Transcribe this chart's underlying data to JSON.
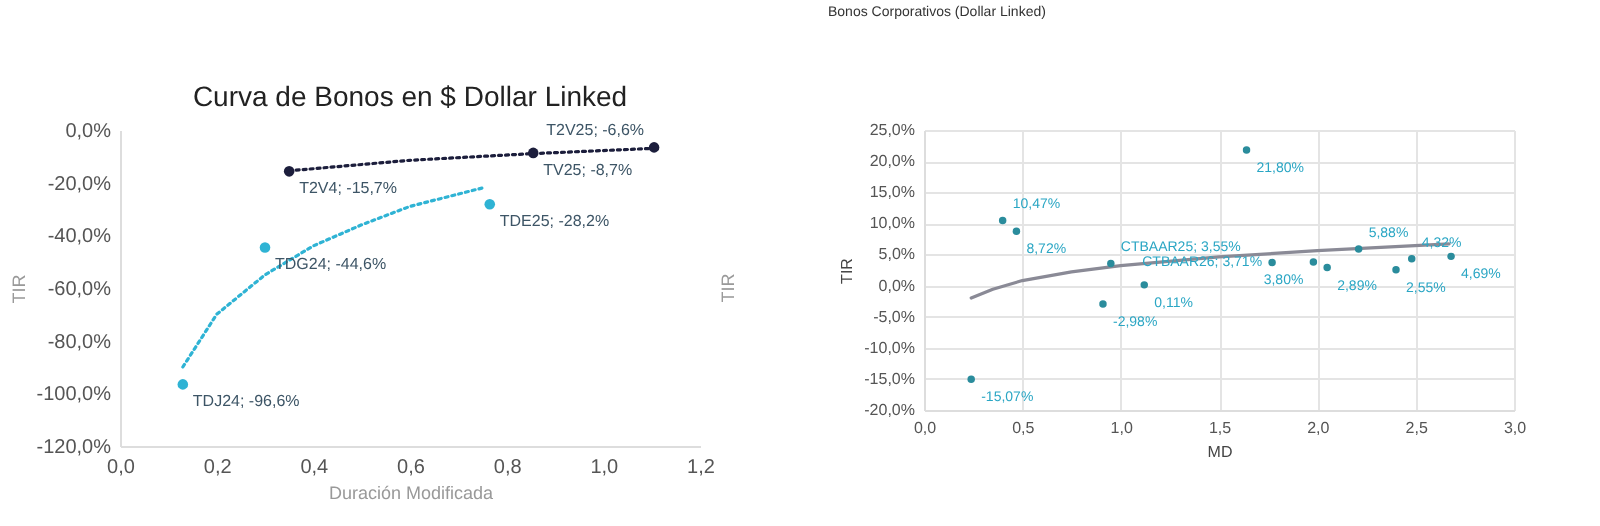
{
  "chart_data": [
    {
      "type": "scatter",
      "title": "Curva de Bonos en $ Dollar Linked",
      "xlabel": "Duración Modificada",
      "ylabel": "TIR",
      "y2label": "TIR",
      "xlim": [
        0,
        1.2
      ],
      "xticks": [
        {
          "value": 0,
          "label": "0,0"
        },
        {
          "value": 0.2,
          "label": "0,2"
        },
        {
          "value": 0.4,
          "label": "0,4"
        },
        {
          "value": 0.6,
          "label": "0,6"
        },
        {
          "value": 0.8,
          "label": "0,8"
        },
        {
          "value": 1,
          "label": "1,0"
        },
        {
          "value": 1.2,
          "label": "1,2"
        }
      ],
      "ylim": [
        -120,
        0
      ],
      "yticks": [
        {
          "value": -120,
          "label": "-120,0%"
        },
        {
          "value": -100,
          "label": "-100,0%"
        },
        {
          "value": -80,
          "label": "-80,0%"
        },
        {
          "value": -60,
          "label": "-60,0%"
        },
        {
          "value": -40,
          "label": "-40,0%"
        },
        {
          "value": -20,
          "label": "-20,0%"
        },
        {
          "value": 0,
          "label": "0,0%"
        }
      ],
      "grid": false,
      "series": [
        {
          "type": "line",
          "color": "#1c1e3c",
          "line_style": "dotted",
          "x": [
            0.35,
            0.6,
            0.85,
            1.1
          ],
          "values": [
            -15.5,
            -11.5,
            -9,
            -7
          ]
        },
        {
          "type": "line",
          "color": "#2fb3d4",
          "line_style": "dotted",
          "x": [
            0.13,
            0.2,
            0.3,
            0.4,
            0.5,
            0.6,
            0.75
          ],
          "values": [
            -90,
            -70,
            -55,
            -44,
            -36,
            -29,
            -22
          ]
        },
        {
          "type": "scatter",
          "marker": "circle",
          "color": "#1c1e3c",
          "x": [
            0.35,
            0.855,
            1.105
          ],
          "values": [
            -15.7,
            -8.7,
            -6.6
          ]
        },
        {
          "type": "scatter",
          "marker": "circle",
          "color": "#2fb3d4",
          "x": [
            0.13,
            0.3,
            0.765
          ],
          "values": [
            -96.6,
            -44.6,
            -28.2
          ]
        }
      ],
      "annotations": [
        {
          "text": "T2V4; -15,7%",
          "x": 0.35,
          "y": -15.7
        },
        {
          "text": "TV25; -8,7%",
          "x": 0.855,
          "y": -8.7
        },
        {
          "text": "T2V25; -6,6%",
          "x": 1.105,
          "y": -6.6
        },
        {
          "text": "TDJ24; -96,6%",
          "x": 0.13,
          "y": -96.6
        },
        {
          "text": "TDG24; -44,6%",
          "x": 0.3,
          "y": -44.6
        },
        {
          "text": "TDE25; -28,2%",
          "x": 0.765,
          "y": -28.2
        }
      ]
    },
    {
      "type": "scatter",
      "title": "Bonos Corporativos (Dollar Linked)",
      "xlabel": "MD",
      "ylabel": "TIR",
      "xlim": [
        0,
        3
      ],
      "xticks": [
        {
          "value": 0,
          "label": "0,0"
        },
        {
          "value": 0.5,
          "label": "0,5"
        },
        {
          "value": 1,
          "label": "1,0"
        },
        {
          "value": 1.5,
          "label": "1,5"
        },
        {
          "value": 2,
          "label": "2,0"
        },
        {
          "value": 2.5,
          "label": "2,5"
        },
        {
          "value": 3,
          "label": "3,0"
        }
      ],
      "ylim": [
        -20,
        25
      ],
      "yticks": [
        {
          "value": -20,
          "label": "-20,0%"
        },
        {
          "value": -15,
          "label": "-15,0%"
        },
        {
          "value": -10,
          "label": "-10,0%"
        },
        {
          "value": -5,
          "label": "-5,0%"
        },
        {
          "value": 0,
          "label": "0,0%"
        },
        {
          "value": 5,
          "label": "5,0%"
        },
        {
          "value": 10,
          "label": "10,0%"
        },
        {
          "value": 15,
          "label": "15,0%"
        },
        {
          "value": 20,
          "label": "20,0%"
        },
        {
          "value": 25,
          "label": "25,0%"
        }
      ],
      "grid": true,
      "series": [
        {
          "type": "line",
          "color": "#8a8a96",
          "line_style": "solid",
          "x": [
            0.24,
            0.35,
            0.5,
            0.75,
            1,
            1.5,
            2,
            2.67
          ],
          "values": [
            -2,
            -0.6,
            0.8,
            2.2,
            3.2,
            4.6,
            5.6,
            6.7
          ]
        },
        {
          "type": "scatter",
          "marker": "circle",
          "color": "#2a8c9c",
          "x": [
            0.4,
            0.47,
            0.95,
            1.12,
            0.91,
            0.24,
            1.64,
            1.77,
            1.98,
            2.05,
            2.21,
            2.4,
            2.48,
            2.68
          ],
          "values": [
            10.47,
            8.72,
            3.55,
            0.11,
            -2.98,
            -15.07,
            21.8,
            3.71,
            3.8,
            2.89,
            5.88,
            2.55,
            4.32,
            4.69
          ]
        }
      ],
      "annotations": [
        {
          "text": "10,47%",
          "x": 0.4,
          "y": 10.47
        },
        {
          "text": "8,72%",
          "x": 0.47,
          "y": 8.72
        },
        {
          "text": "CTBAAR25; 3,55%",
          "x": 0.95,
          "y": 3.55
        },
        {
          "text": "0,11%",
          "x": 1.12,
          "y": 0.11
        },
        {
          "text": "-2,98%",
          "x": 0.91,
          "y": -2.98
        },
        {
          "text": "-15,07%",
          "x": 0.24,
          "y": -15.07
        },
        {
          "text": "21,80%",
          "x": 1.64,
          "y": 21.8
        },
        {
          "text": "CTBAAR26; 3,71%",
          "x": 1.77,
          "y": 3.71
        },
        {
          "text": "3,80%",
          "x": 1.98,
          "y": 3.8
        },
        {
          "text": "2,89%",
          "x": 2.05,
          "y": 2.89
        },
        {
          "text": "5,88%",
          "x": 2.21,
          "y": 5.88
        },
        {
          "text": "2,55%",
          "x": 2.4,
          "y": 2.55
        },
        {
          "text": "4,32%",
          "x": 2.48,
          "y": 4.32
        },
        {
          "text": "4,69%",
          "x": 2.68,
          "y": 4.69
        }
      ]
    }
  ]
}
